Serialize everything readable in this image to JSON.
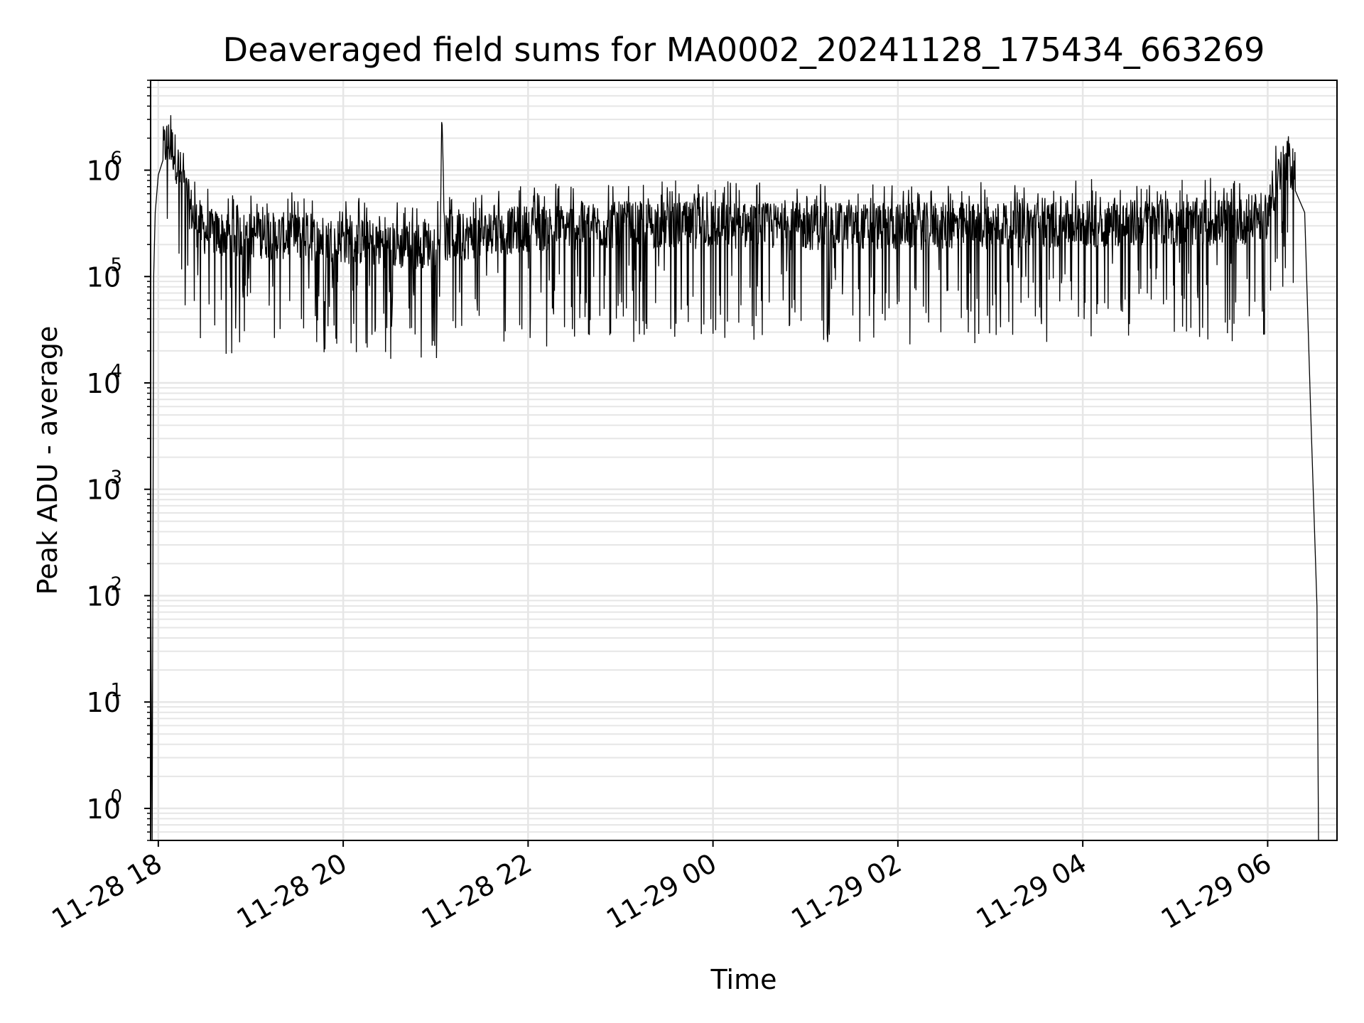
{
  "chart_data": {
    "type": "line",
    "title": "Deaveraged field sums for MA0002_20241128_175434_663269",
    "xlabel": "Time",
    "ylabel": "Peak ADU - average",
    "yscale": "log",
    "ylim": [
      0.5,
      7000000
    ],
    "xlim": [
      "2024-11-28 17:55",
      "2024-11-29 06:45"
    ],
    "x_ticks": [
      "11-28 18",
      "11-28 20",
      "11-28 22",
      "11-29 00",
      "11-29 02",
      "11-29 04",
      "11-29 06"
    ],
    "y_ticks": [
      {
        "base": "10",
        "exp": "0",
        "value": 1
      },
      {
        "base": "10",
        "exp": "1",
        "value": 10
      },
      {
        "base": "10",
        "exp": "2",
        "value": 100
      },
      {
        "base": "10",
        "exp": "3",
        "value": 1000
      },
      {
        "base": "10",
        "exp": "4",
        "value": 10000
      },
      {
        "base": "10",
        "exp": "5",
        "value": 100000
      },
      {
        "base": "10",
        "exp": "6",
        "value": 1000000
      }
    ],
    "grid": true,
    "line_color": "#000000",
    "grid_color": "#e6e6e6",
    "series": [
      {
        "x": [
          "2024-11-28 17:55",
          "2024-11-28 17:56",
          "2024-11-28 17:57",
          "2024-11-28 17:58",
          "2024-11-28 18:00",
          "2024-11-28 18:03",
          "2024-11-28 18:06",
          "2024-11-28 18:10",
          "2024-11-28 18:15",
          "2024-11-28 18:20",
          "2024-11-28 18:25",
          "2024-11-28 18:30",
          "2024-11-28 18:45",
          "2024-11-28 19:00",
          "2024-11-28 19:30",
          "2024-11-28 20:00",
          "2024-11-28 20:30",
          "2024-11-28 20:40",
          "2024-11-28 21:00",
          "2024-11-28 21:03",
          "2024-11-28 21:04",
          "2024-11-28 21:06",
          "2024-11-28 21:30",
          "2024-11-28 22:00",
          "2024-11-28 23:00",
          "2024-11-29 00:00",
          "2024-11-29 01:00",
          "2024-11-29 02:00",
          "2024-11-29 03:00",
          "2024-11-29 04:00",
          "2024-11-29 05:00",
          "2024-11-29 05:45",
          "2024-11-29 06:00",
          "2024-11-29 06:06",
          "2024-11-29 06:12",
          "2024-11-29 06:18",
          "2024-11-29 06:24",
          "2024-11-29 06:28",
          "2024-11-29 06:32",
          "2024-11-29 06:33"
        ],
        "y": [
          200,
          0.5,
          100000,
          400000,
          900000,
          1600000,
          2000000,
          1600000,
          900000,
          500000,
          330000,
          280000,
          260000,
          260000,
          250000,
          230000,
          210000,
          200000,
          220000,
          220000,
          3500000,
          240000,
          260000,
          300000,
          320000,
          320000,
          310000,
          310000,
          320000,
          330000,
          340000,
          350000,
          400000,
          900000,
          1200000,
          1100000,
          400000,
          5000,
          80,
          0.5
        ]
      }
    ]
  }
}
